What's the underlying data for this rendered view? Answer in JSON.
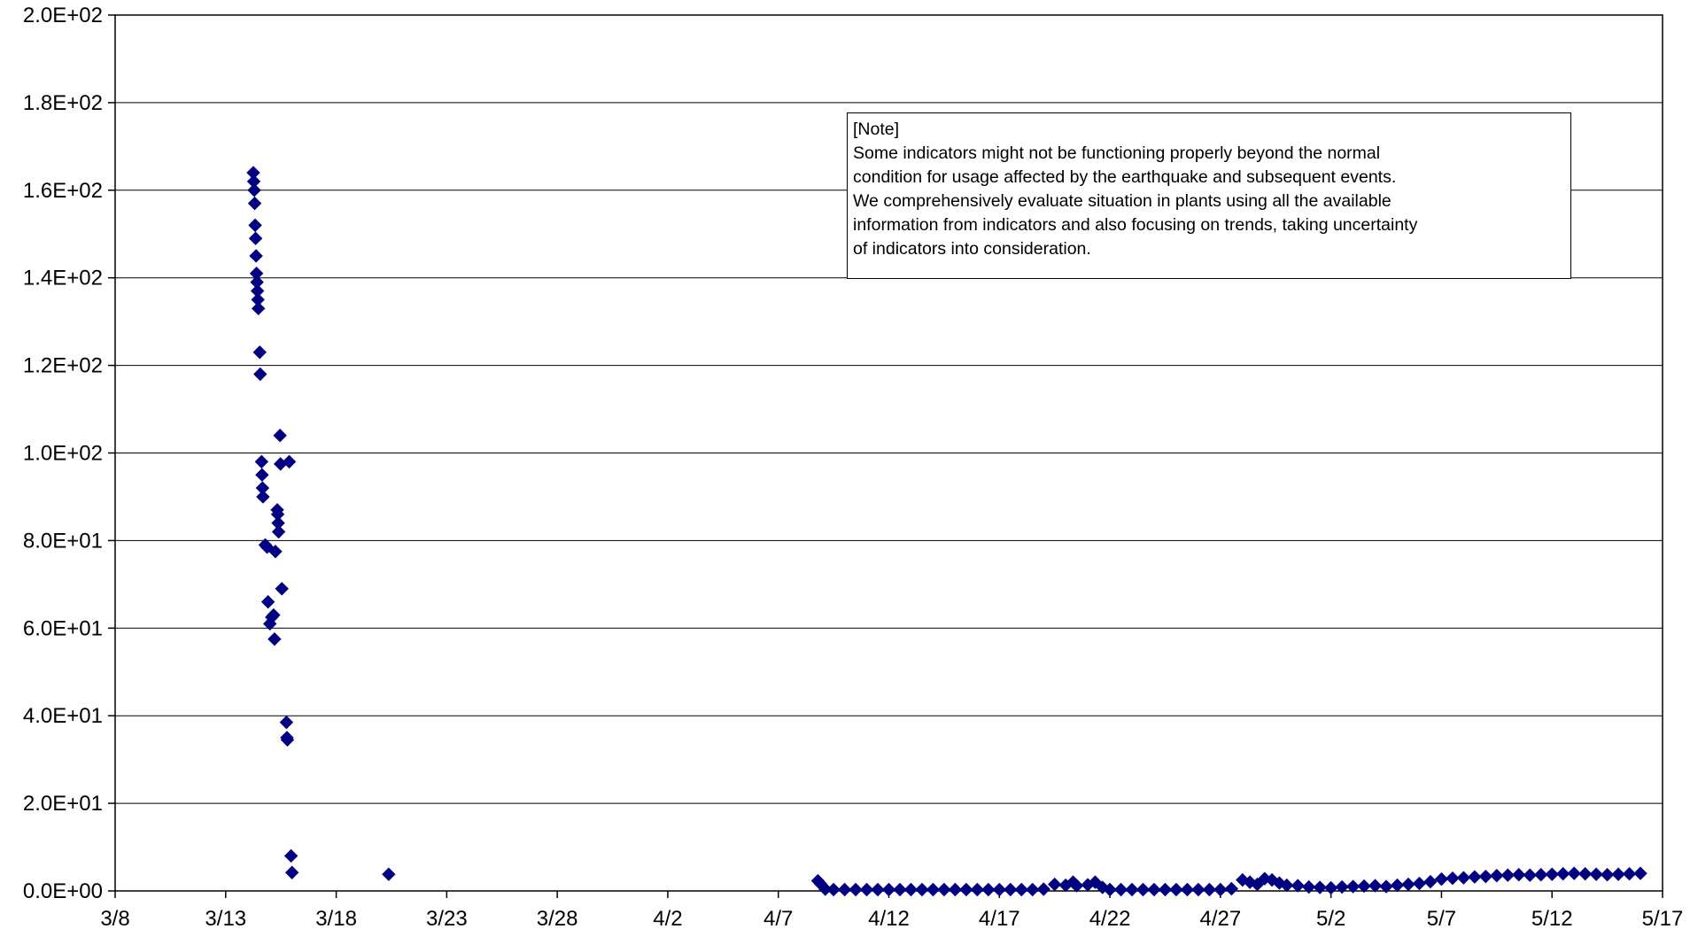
{
  "note": {
    "title": "[Note]",
    "lines": [
      "Some indicators might not be functioning properly beyond the normal",
      "condition for usage affected by the earthquake and subsequent events.",
      "We comprehensively evaluate situation in plants using all the available",
      "information from indicators and also focusing on trends, taking uncertainty",
      "of indicators into consideration."
    ]
  },
  "chart_data": {
    "type": "scatter",
    "title": "",
    "xlabel": "",
    "ylabel": "",
    "x_axis": {
      "type": "date",
      "range": [
        "3/8",
        "5/17"
      ],
      "tick_labels": [
        "3/8",
        "3/13",
        "3/18",
        "3/23",
        "3/28",
        "4/2",
        "4/7",
        "4/12",
        "4/17",
        "4/22",
        "4/27",
        "5/2",
        "5/7",
        "5/12",
        "5/17"
      ]
    },
    "y_axis": {
      "range": [
        0,
        200
      ],
      "tick_values": [
        0,
        20,
        40,
        60,
        80,
        100,
        120,
        140,
        160,
        180,
        200
      ],
      "tick_labels": [
        "0.0E+00",
        "2.0E+01",
        "4.0E+01",
        "6.0E+01",
        "8.0E+01",
        "1.0E+02",
        "1.2E+02",
        "1.4E+02",
        "1.6E+02",
        "1.8E+02",
        "2.0E+02"
      ]
    },
    "grid": "horizontal",
    "legend": "none",
    "marker": "diamond",
    "color": "#000080",
    "series": [
      {
        "points": [
          [
            "3/14 06:00",
            164
          ],
          [
            "3/14 06:30",
            162
          ],
          [
            "3/14 07:00",
            160
          ],
          [
            "3/14 07:30",
            157
          ],
          [
            "3/14 08:00",
            152
          ],
          [
            "3/14 08:30",
            149
          ],
          [
            "3/14 09:00",
            145
          ],
          [
            "3/14 09:30",
            141
          ],
          [
            "3/14 10:00",
            139
          ],
          [
            "3/14 10:30",
            137
          ],
          [
            "3/14 11:00",
            135
          ],
          [
            "3/14 11:30",
            133
          ],
          [
            "3/14 13:00",
            123
          ],
          [
            "3/14 13:30",
            118
          ],
          [
            "3/14 15:00",
            98
          ],
          [
            "3/14 15:30",
            95
          ],
          [
            "3/14 16:00",
            92
          ],
          [
            "3/14 16:30",
            90
          ],
          [
            "3/14 19:00",
            79
          ],
          [
            "3/14 21:00",
            78.5
          ],
          [
            "3/14 22:00",
            66
          ],
          [
            "3/15 00:00",
            61
          ],
          [
            "3/15 02:00",
            62.5
          ],
          [
            "3/15 04:00",
            63
          ],
          [
            "3/15 05:00",
            57.5
          ],
          [
            "3/15 06:00",
            77.5
          ],
          [
            "3/15 08:00",
            87
          ],
          [
            "3/15 08:30",
            86
          ],
          [
            "3/15 09:00",
            84
          ],
          [
            "3/15 09:30",
            82
          ],
          [
            "3/15 11:00",
            104
          ],
          [
            "3/15 11:30",
            97.5
          ],
          [
            "3/15 13:00",
            69
          ],
          [
            "3/15 18:00",
            38.5
          ],
          [
            "3/15 18:30",
            35
          ],
          [
            "3/15 19:00",
            34.5
          ],
          [
            "3/15 21:00",
            98
          ],
          [
            "3/15 23:00",
            8
          ],
          [
            "3/16 00:00",
            4.2
          ],
          [
            "3/20 09:00",
            3.8
          ],
          [
            "4/8 19:00",
            2.3
          ],
          [
            "4/8 22:00",
            1.6
          ],
          [
            "4/9 03:00",
            0.4
          ],
          [
            "4/9 12:00",
            0.3
          ],
          [
            "4/10 00:00",
            0.3
          ],
          [
            "4/10 12:00",
            0.3
          ],
          [
            "4/11 00:00",
            0.3
          ],
          [
            "4/11 12:00",
            0.3
          ],
          [
            "4/12 00:00",
            0.3
          ],
          [
            "4/12 12:00",
            0.3
          ],
          [
            "4/13 00:00",
            0.3
          ],
          [
            "4/13 12:00",
            0.3
          ],
          [
            "4/14 00:00",
            0.3
          ],
          [
            "4/14 12:00",
            0.3
          ],
          [
            "4/15 00:00",
            0.3
          ],
          [
            "4/15 12:00",
            0.3
          ],
          [
            "4/16 00:00",
            0.3
          ],
          [
            "4/16 12:00",
            0.3
          ],
          [
            "4/17 00:00",
            0.3
          ],
          [
            "4/17 12:00",
            0.3
          ],
          [
            "4/18 00:00",
            0.3
          ],
          [
            "4/18 12:00",
            0.3
          ],
          [
            "4/19 00:00",
            0.4
          ],
          [
            "4/19 12:00",
            1.5
          ],
          [
            "4/20 00:00",
            1.3
          ],
          [
            "4/20 08:00",
            2.0
          ],
          [
            "4/20 12:00",
            1.2
          ],
          [
            "4/21 00:00",
            1.4
          ],
          [
            "4/21 08:00",
            2.0
          ],
          [
            "4/21 16:00",
            0.8
          ],
          [
            "4/22 00:00",
            0.3
          ],
          [
            "4/22 12:00",
            0.3
          ],
          [
            "4/23 00:00",
            0.3
          ],
          [
            "4/23 12:00",
            0.3
          ],
          [
            "4/24 00:00",
            0.3
          ],
          [
            "4/24 12:00",
            0.3
          ],
          [
            "4/25 00:00",
            0.3
          ],
          [
            "4/25 12:00",
            0.3
          ],
          [
            "4/26 00:00",
            0.3
          ],
          [
            "4/26 12:00",
            0.3
          ],
          [
            "4/27 00:00",
            0.3
          ],
          [
            "4/27 12:00",
            0.5
          ],
          [
            "4/28 00:00",
            2.5
          ],
          [
            "4/28 08:00",
            2.0
          ],
          [
            "4/28 16:00",
            1.5
          ],
          [
            "4/29 00:00",
            2.8
          ],
          [
            "4/29 08:00",
            2.5
          ],
          [
            "4/29 16:00",
            1.8
          ],
          [
            "4/30 00:00",
            1.3
          ],
          [
            "4/30 12:00",
            1.2
          ],
          [
            "5/1 00:00",
            0.9
          ],
          [
            "5/1 12:00",
            0.8
          ],
          [
            "5/2 00:00",
            0.7
          ],
          [
            "5/2 12:00",
            0.9
          ],
          [
            "5/3 00:00",
            1.0
          ],
          [
            "5/3 12:00",
            1.1
          ],
          [
            "5/4 00:00",
            1.2
          ],
          [
            "5/4 12:00",
            1.0
          ],
          [
            "5/5 00:00",
            1.3
          ],
          [
            "5/5 12:00",
            1.5
          ],
          [
            "5/6 00:00",
            1.7
          ],
          [
            "5/6 12:00",
            2.1
          ],
          [
            "5/7 00:00",
            2.7
          ],
          [
            "5/7 12:00",
            2.9
          ],
          [
            "5/8 00:00",
            3.0
          ],
          [
            "5/8 12:00",
            3.2
          ],
          [
            "5/9 00:00",
            3.3
          ],
          [
            "5/9 12:00",
            3.5
          ],
          [
            "5/10 00:00",
            3.6
          ],
          [
            "5/10 12:00",
            3.7
          ],
          [
            "5/11 00:00",
            3.6
          ],
          [
            "5/11 12:00",
            3.7
          ],
          [
            "5/12 00:00",
            3.8
          ],
          [
            "5/12 12:00",
            3.9
          ],
          [
            "5/13 00:00",
            4.0
          ],
          [
            "5/13 12:00",
            3.9
          ],
          [
            "5/14 00:00",
            3.8
          ],
          [
            "5/14 12:00",
            3.7
          ],
          [
            "5/15 00:00",
            3.8
          ],
          [
            "5/15 12:00",
            3.9
          ],
          [
            "5/16 00:00",
            4.0
          ]
        ]
      }
    ]
  }
}
